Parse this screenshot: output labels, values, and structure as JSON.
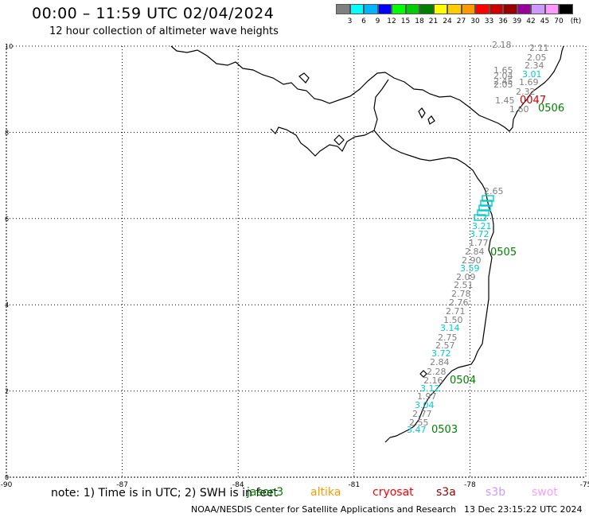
{
  "title": "00:00 – 11:59 UTC 02/04/2024",
  "subtitle": "12 hour collection of altimeter wave heights",
  "colorbar": {
    "unit": "(ft)",
    "labels": [
      "3",
      "6",
      "9",
      "12",
      "15",
      "18",
      "21",
      "24",
      "27",
      "30",
      "33",
      "36",
      "39",
      "42",
      "45",
      "70"
    ],
    "colors": [
      "#808080",
      "#00ffff",
      "#00b4ff",
      "#0000ff",
      "#00ff00",
      "#00cc00",
      "#008000",
      "#ffff00",
      "#ffcc00",
      "#ff9900",
      "#ff0000",
      "#cc0000",
      "#990000",
      "#990099",
      "#cc99ff",
      "#ff99ff",
      "#000000"
    ]
  },
  "map": {
    "x_ticks": [
      "-90",
      "-87",
      "-84",
      "-81",
      "-78",
      "-75"
    ],
    "y_ticks": [
      "10",
      "8",
      "6",
      "4",
      "2",
      "0"
    ],
    "tick_values": {
      "lon": [
        -90,
        -87,
        -84,
        -81,
        -78,
        -75
      ],
      "lat": [
        10,
        8,
        6,
        4,
        2,
        0
      ]
    }
  },
  "passes": [
    {
      "label": "0506",
      "color": "#008000"
    },
    {
      "label": "0505",
      "color": "#008000"
    },
    {
      "label": "0504",
      "color": "#008000"
    },
    {
      "label": "0503",
      "color": "#008000"
    },
    {
      "label": "0047",
      "color": "#cc0000"
    }
  ],
  "observations": [
    {
      "text": "2.18",
      "color": "#808080"
    },
    {
      "text": "2.11",
      "color": "#808080"
    },
    {
      "text": "2.05",
      "color": "#808080"
    },
    {
      "text": "2.34",
      "color": "#808080"
    },
    {
      "text": "1.65",
      "color": "#808080"
    },
    {
      "text": "2.04",
      "color": "#808080"
    },
    {
      "text": "2.45",
      "color": "#808080"
    },
    {
      "text": "3.01",
      "color": "#00cccc"
    },
    {
      "text": "2.05",
      "color": "#808080"
    },
    {
      "text": "1.69",
      "color": "#808080"
    },
    {
      "text": "2.32",
      "color": "#808080"
    },
    {
      "text": "1.45",
      "color": "#808080"
    },
    {
      "text": "1.60",
      "color": "#808080"
    },
    {
      "text": "2.65",
      "color": "#808080"
    },
    {
      "text": "3.21",
      "color": "#00cccc"
    },
    {
      "text": "3.72",
      "color": "#00cccc"
    },
    {
      "text": "1.77",
      "color": "#808080"
    },
    {
      "text": "2.84",
      "color": "#808080"
    },
    {
      "text": "2.90",
      "color": "#808080"
    },
    {
      "text": "3.59",
      "color": "#00cccc"
    },
    {
      "text": "2.09",
      "color": "#808080"
    },
    {
      "text": "2.51",
      "color": "#808080"
    },
    {
      "text": "2.78",
      "color": "#808080"
    },
    {
      "text": "2.76",
      "color": "#808080"
    },
    {
      "text": "2.71",
      "color": "#808080"
    },
    {
      "text": "1.50",
      "color": "#808080"
    },
    {
      "text": "3.14",
      "color": "#00cccc"
    },
    {
      "text": "2.75",
      "color": "#808080"
    },
    {
      "text": "2.57",
      "color": "#808080"
    },
    {
      "text": "3.72",
      "color": "#00cccc"
    },
    {
      "text": "2.84",
      "color": "#808080"
    },
    {
      "text": "2.28",
      "color": "#808080"
    },
    {
      "text": "2.16",
      "color": "#808080"
    },
    {
      "text": "3.12",
      "color": "#00cccc"
    },
    {
      "text": "1.97",
      "color": "#808080"
    },
    {
      "text": "3.04",
      "color": "#00cccc"
    },
    {
      "text": "2.77",
      "color": "#808080"
    },
    {
      "text": "2.55",
      "color": "#808080"
    },
    {
      "text": "3.47",
      "color": "#00cccc"
    }
  ],
  "footer": {
    "note": "note:  1) Time is in UTC; 2) SWH is in feet",
    "satellites": [
      {
        "name": "jason3",
        "color": "#008000"
      },
      {
        "name": "altika",
        "color": "#ff9900"
      },
      {
        "name": "cryosat",
        "color": "#ff0000"
      },
      {
        "name": "s3a",
        "color": "#990000"
      },
      {
        "name": "s3b",
        "color": "#cc99ff"
      },
      {
        "name": "swot",
        "color": "#ff99ff"
      }
    ],
    "credit": "NOAA/NESDIS Center for Satellite Applications and Research",
    "generated": "13 Dec 23:15:22 UTC 2024"
  }
}
